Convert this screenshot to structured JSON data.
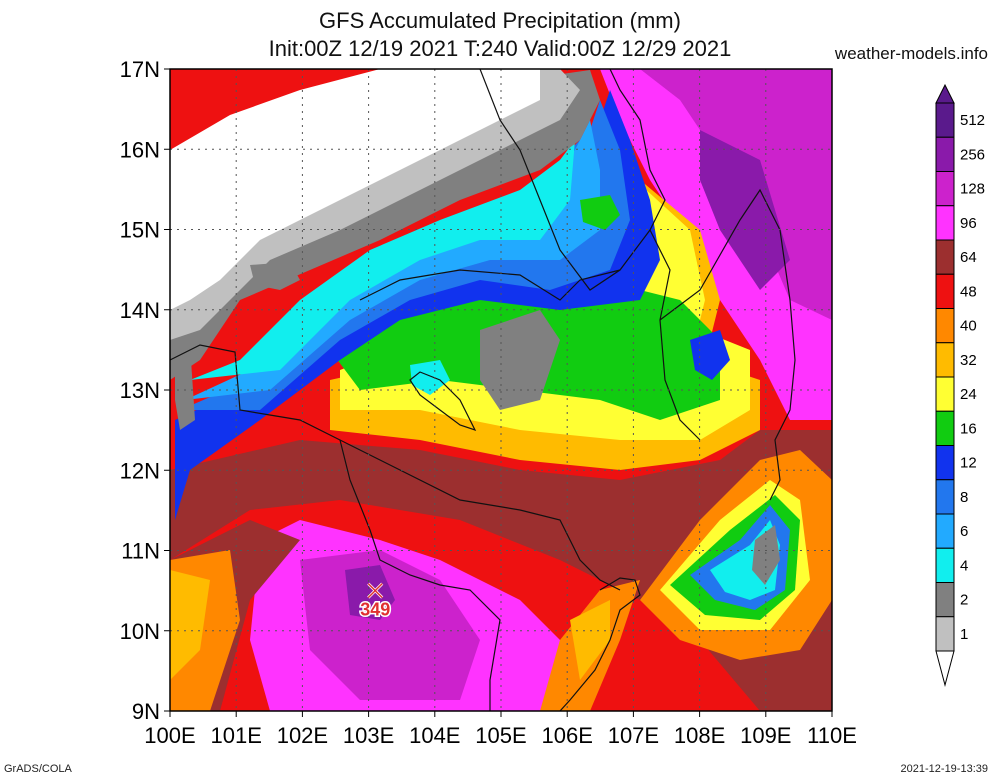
{
  "title_line1": "GFS Accumulated Precipitation (mm)",
  "title_line2": "Init:00Z 12/19 2021 T:240 Valid:00Z 12/29 2021",
  "site": "weather-models.info",
  "footer_left": "GrADS/COLA",
  "footer_right": "2021-12-19-13:39",
  "lat_labels": [
    "17N",
    "16N",
    "15N",
    "14N",
    "13N",
    "12N",
    "11N",
    "10N",
    "9N"
  ],
  "lon_labels": [
    "100E",
    "101E",
    "102E",
    "103E",
    "104E",
    "105E",
    "106E",
    "107E",
    "108E",
    "109E",
    "110E"
  ],
  "max_marker": {
    "label": "349",
    "lon": 103.1,
    "lat": 10.5
  },
  "legend": [
    {
      "label": "512",
      "color": "#5a1a8c"
    },
    {
      "label": "256",
      "color": "#8a1aaa"
    },
    {
      "label": "128",
      "color": "#cc22cc"
    },
    {
      "label": "96",
      "color": "#ff33ff"
    },
    {
      "label": "64",
      "color": "#9c2f2f"
    },
    {
      "label": "48",
      "color": "#ee1111"
    },
    {
      "label": "40",
      "color": "#ff8800"
    },
    {
      "label": "32",
      "color": "#ffbb00"
    },
    {
      "label": "24",
      "color": "#ffff33"
    },
    {
      "label": "16",
      "color": "#11cc11"
    },
    {
      "label": "12",
      "color": "#1133ee"
    },
    {
      "label": "8",
      "color": "#2277ee"
    },
    {
      "label": "6",
      "color": "#22aaff"
    },
    {
      "label": "4",
      "color": "#11eeee"
    },
    {
      "label": "2",
      "color": "#808080"
    },
    {
      "label": "1",
      "color": "#c0c0c0"
    }
  ]
}
